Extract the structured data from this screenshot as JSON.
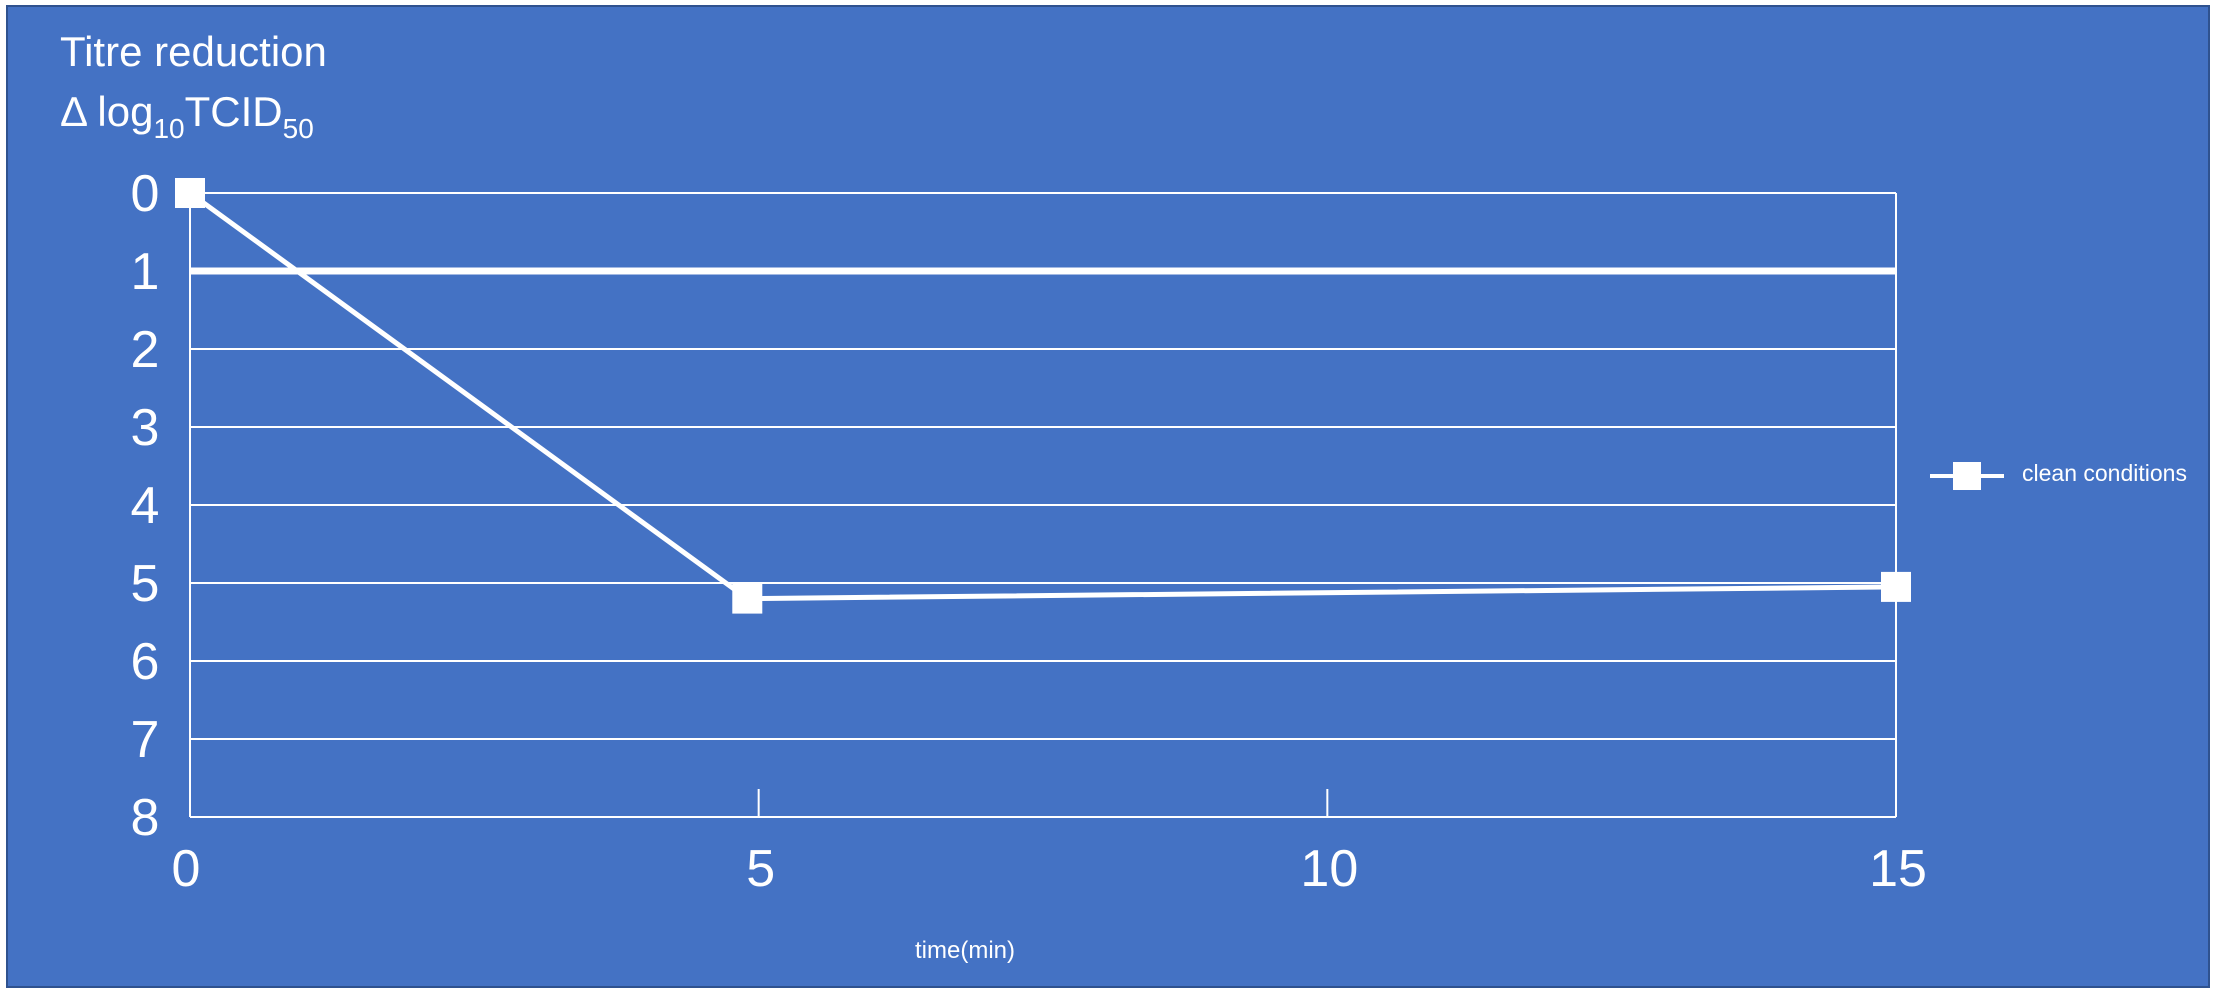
{
  "chart_data": {
    "type": "line",
    "title": "",
    "ylabel": {
      "line1": "Titre reduction",
      "line2_prefix": "Δ log",
      "line2_sub1": "10",
      "line2_mid": "TCID",
      "line2_sub2": "50"
    },
    "xlabel": "time(min)",
    "x_ticks": [
      "0",
      "5",
      "10",
      "15"
    ],
    "y_ticks": [
      "0",
      "1",
      "2",
      "3",
      "4",
      "5",
      "6",
      "7",
      "8"
    ],
    "xlim": [
      0,
      15
    ],
    "ylim": [
      0,
      8
    ],
    "y_inverted": true,
    "grid": true,
    "reference_line": 1,
    "legend_position": "right",
    "series": [
      {
        "name": "clean conditions",
        "marker": "square",
        "color": "#ffffff",
        "x": [
          0,
          4.9,
          15
        ],
        "y": [
          0,
          5.2,
          5.05
        ]
      }
    ],
    "colors": {
      "background": "#4472c4",
      "foreground": "#ffffff"
    }
  }
}
